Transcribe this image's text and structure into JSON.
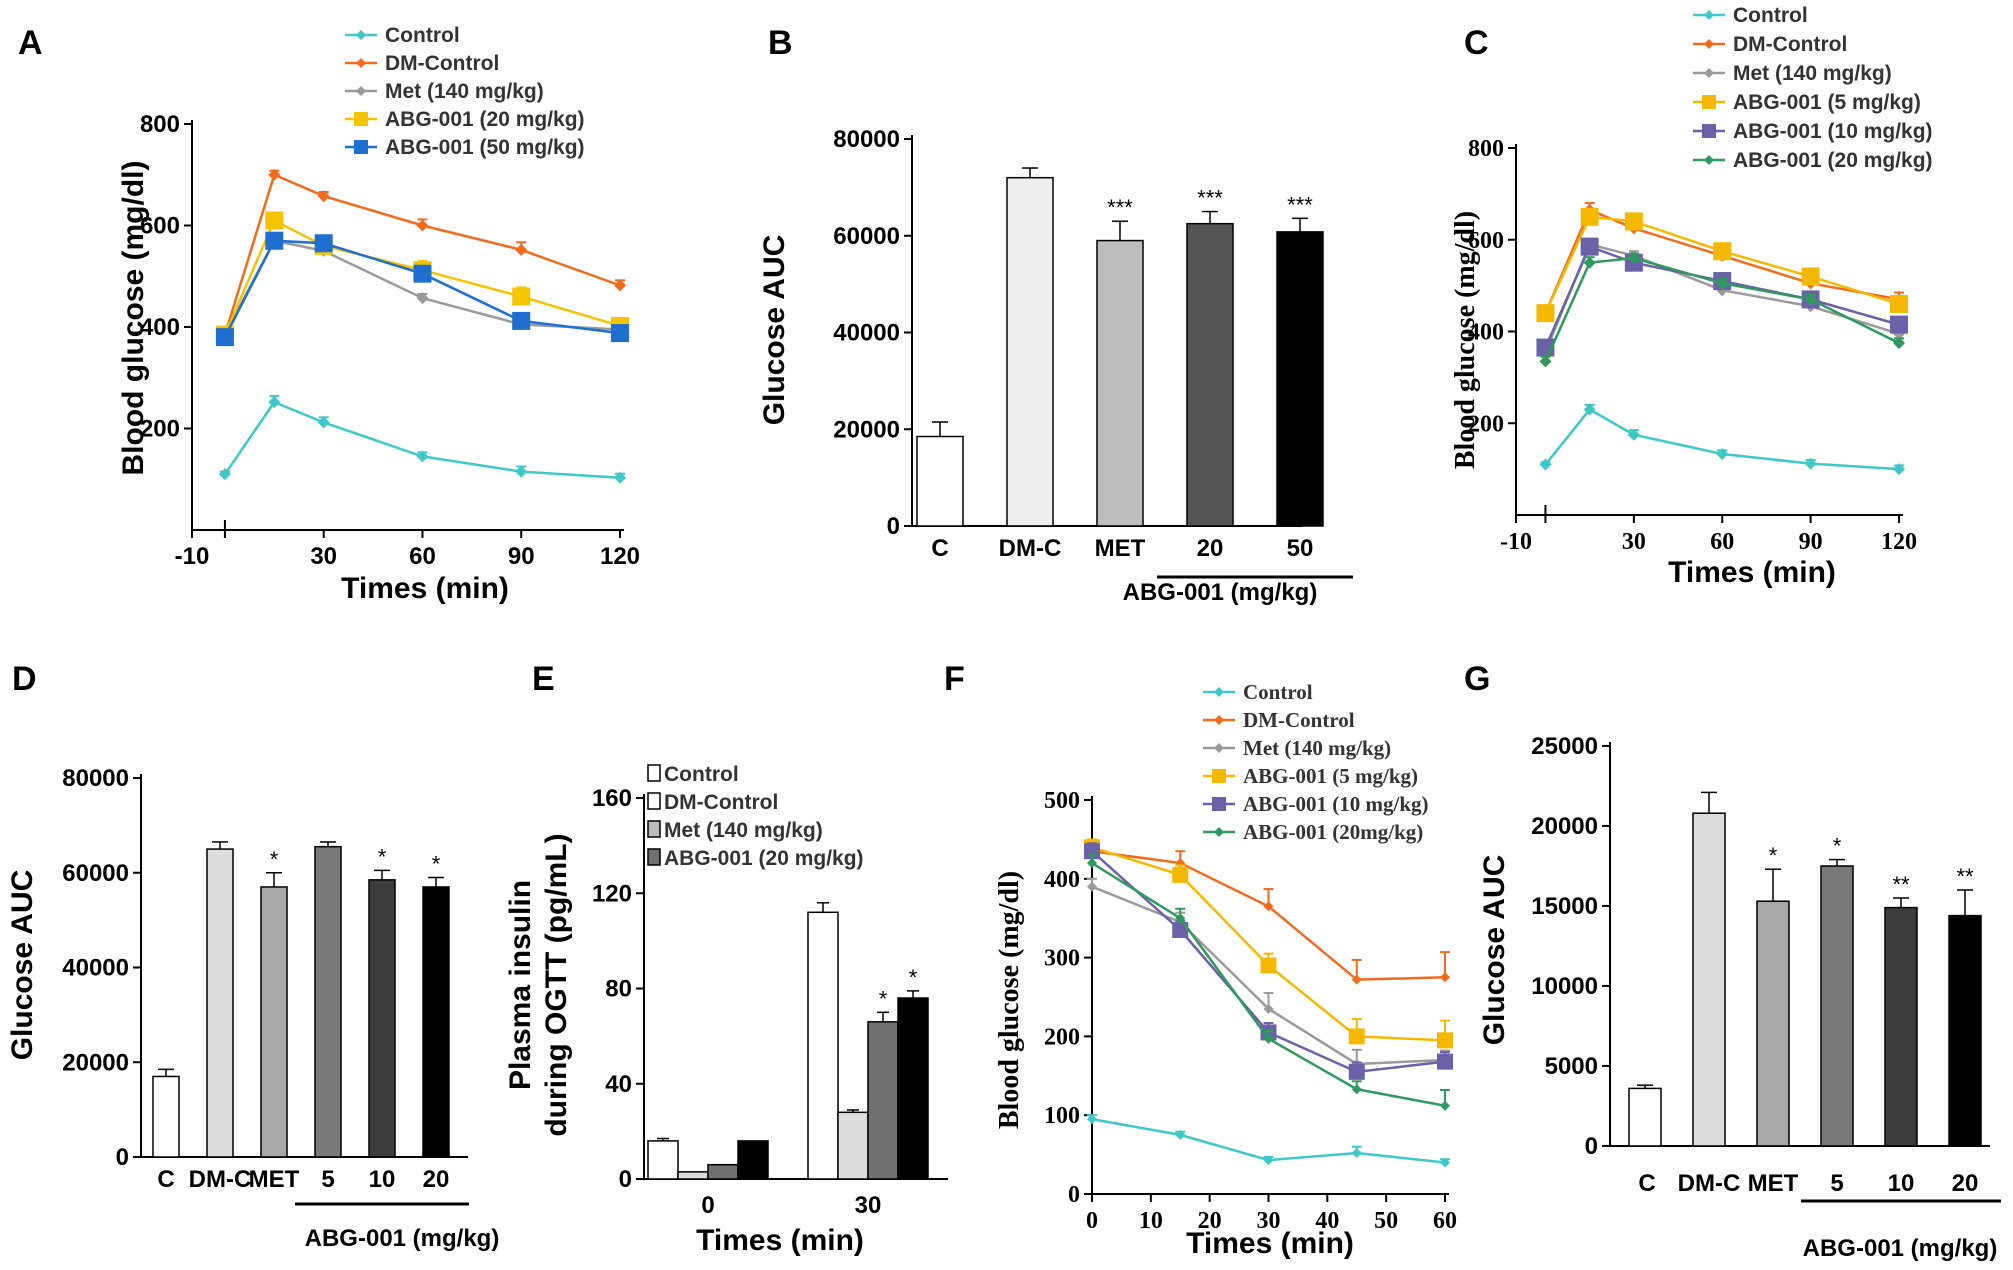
{
  "figure": {
    "panels": [
      "A",
      "B",
      "C",
      "D",
      "E",
      "F",
      "G"
    ]
  },
  "colors": {
    "control": "#3ec8c8",
    "dm_control": "#f26b1d",
    "met": "#9a9a9a",
    "abg_5": "#f5b800",
    "abg_10": "#6a62a6",
    "abg_20_green": "#2e9a5e",
    "abg_20_yellow": "#f5c400",
    "abg_50": "#1f6fd0"
  },
  "chart_data": [
    {
      "id": "A",
      "type": "line",
      "title": "",
      "xlabel": "Times    (min)",
      "ylabel": "Blood glucose (mg/dl)",
      "x_ticks": [
        "-10",
        "30",
        "60",
        "90",
        "120"
      ],
      "x_tick_values": [
        -10,
        30,
        60,
        90,
        120
      ],
      "y_ticks": [
        "200",
        "400",
        "600",
        "800"
      ],
      "y_tick_values": [
        200,
        400,
        600,
        800
      ],
      "xlim": [
        -10,
        120
      ],
      "ylim": [
        0,
        800
      ],
      "x": [
        0,
        15,
        30,
        60,
        90,
        120
      ],
      "series": [
        {
          "name": "Control",
          "color_key": "control",
          "marker": "diamond",
          "values": [
            110,
            252,
            212,
            145,
            115,
            103
          ],
          "err": [
            5,
            12,
            10,
            8,
            10,
            8
          ]
        },
        {
          "name": "DM-Control",
          "color_key": "dm_control",
          "marker": "diamond",
          "values": [
            385,
            700,
            658,
            600,
            552,
            482
          ],
          "err": [
            10,
            8,
            8,
            12,
            15,
            10
          ]
        },
        {
          "name": "Met (140 mg/kg)",
          "color_key": "met",
          "marker": "diamond",
          "values": [
            385,
            570,
            550,
            457,
            405,
            395
          ],
          "err": [
            8,
            12,
            10,
            8,
            8,
            8
          ]
        },
        {
          "name": "ABG-001 (20 mg/kg)",
          "color_key": "abg_20_yellow",
          "marker": "square",
          "values": [
            385,
            610,
            560,
            512,
            460,
            402
          ],
          "err": [
            10,
            12,
            12,
            18,
            18,
            12
          ]
        },
        {
          "name": "ABG-001 (50 mg/kg)",
          "color_key": "abg_50",
          "marker": "square",
          "values": [
            380,
            570,
            565,
            505,
            412,
            388
          ],
          "err": [
            10,
            15,
            12,
            15,
            12,
            10
          ]
        }
      ]
    },
    {
      "id": "B",
      "type": "bar",
      "title": "",
      "xlabel": "ABG-001  (mg/kg)",
      "ylabel": "Glucose AUC",
      "categories": [
        "C",
        "DM-C",
        "MET",
        "20",
        "50"
      ],
      "values": [
        18500,
        72000,
        59000,
        62500,
        60800
      ],
      "err": [
        3000,
        2000,
        4000,
        2500,
        2800
      ],
      "fills": [
        "#ffffff",
        "#efefef",
        "#bdbdbd",
        "#555555",
        "#000000"
      ],
      "sig": [
        "",
        "",
        "***",
        "***",
        "***"
      ],
      "y_ticks": [
        "0",
        "20000",
        "40000",
        "60000",
        "80000"
      ],
      "y_tick_values": [
        0,
        20000,
        40000,
        60000,
        80000
      ],
      "ylim": [
        0,
        80000
      ]
    },
    {
      "id": "C",
      "type": "line",
      "title": "",
      "xlabel": "Times    (min)",
      "ylabel": "Blood glucose  (mg/dl)",
      "x_ticks": [
        "-10",
        "30",
        "60",
        "90",
        "120"
      ],
      "x_tick_values": [
        -10,
        30,
        60,
        90,
        120
      ],
      "y_ticks": [
        "200",
        "400",
        "600",
        "800"
      ],
      "y_tick_values": [
        200,
        400,
        600,
        800
      ],
      "xlim": [
        -10,
        120
      ],
      "ylim": [
        0,
        800
      ],
      "x": [
        0,
        15,
        30,
        60,
        90,
        120
      ],
      "series": [
        {
          "name": "Control",
          "color_key": "control",
          "marker": "diamond",
          "values": [
            110,
            230,
            175,
            133,
            112,
            100
          ],
          "err": [
            5,
            10,
            10,
            8,
            8,
            8
          ]
        },
        {
          "name": "DM-Control",
          "color_key": "dm_control",
          "marker": "diamond",
          "values": [
            440,
            665,
            625,
            565,
            505,
            470
          ],
          "err": [
            10,
            15,
            12,
            12,
            12,
            15
          ]
        },
        {
          "name": "Met (140 mg/kg)",
          "color_key": "met",
          "marker": "diamond",
          "values": [
            355,
            590,
            565,
            490,
            455,
            395
          ],
          "err": [
            10,
            12,
            10,
            10,
            10,
            10
          ]
        },
        {
          "name": "ABG-001 (5 mg/kg)",
          "color_key": "abg_5",
          "marker": "square",
          "values": [
            440,
            650,
            640,
            575,
            520,
            460
          ],
          "err": [
            10,
            15,
            12,
            12,
            12,
            15
          ]
        },
        {
          "name": "ABG-001 (10 mg/kg)",
          "color_key": "abg_10",
          "marker": "square",
          "values": [
            365,
            585,
            550,
            510,
            470,
            415
          ],
          "err": [
            10,
            12,
            12,
            12,
            10,
            12
          ]
        },
        {
          "name": "ABG-001 (20 mg/kg)",
          "color_key": "abg_20_green",
          "marker": "diamond",
          "values": [
            335,
            550,
            560,
            505,
            470,
            375
          ],
          "err": [
            10,
            12,
            10,
            10,
            10,
            10
          ]
        }
      ]
    },
    {
      "id": "D",
      "type": "bar",
      "title": "",
      "xlabel": "ABG-001  (mg/kg)",
      "ylabel": "Glucose  AUC",
      "categories": [
        "C",
        "DM-C",
        "MET",
        "5",
        "10",
        "20"
      ],
      "values": [
        17000,
        65000,
        57000,
        65500,
        58500,
        57000
      ],
      "err": [
        1500,
        1500,
        3000,
        1000,
        2000,
        2000
      ],
      "fills": [
        "#ffffff",
        "#dcdcdc",
        "#a8a8a8",
        "#7a7a7a",
        "#3c3c3c",
        "#000000"
      ],
      "sig": [
        "",
        "",
        "*",
        "",
        "*",
        "*"
      ],
      "y_ticks": [
        "0",
        "20000",
        "40000",
        "60000",
        "80000"
      ],
      "y_tick_values": [
        0,
        20000,
        40000,
        60000,
        80000
      ],
      "ylim": [
        0,
        80000
      ]
    },
    {
      "id": "E",
      "type": "bar",
      "title": "",
      "xlabel": "Times (min)",
      "ylabel": "Plasma insulin",
      "ylabel2": "during OGTT (pg/mL)",
      "categories": [
        "0",
        "30"
      ],
      "series": [
        {
          "name": "Control",
          "values": [
            16,
            112
          ],
          "err": [
            1,
            4
          ]
        },
        {
          "name": "DM-Control",
          "values": [
            3,
            28
          ],
          "err": [
            0,
            1
          ]
        },
        {
          "name": "Met (140 mg/kg)",
          "values": [
            6,
            66
          ],
          "err": [
            0,
            4
          ]
        },
        {
          "name": "ABG-001 (20 mg/kg)",
          "values": [
            16,
            76
          ],
          "err": [
            0,
            3
          ]
        }
      ],
      "fills": [
        "#ffffff",
        "#dcdcdc",
        "#707070",
        "#000000"
      ],
      "legend_fills": [
        "#ffffff",
        "#ffffff",
        "#bdbdbd",
        "#707070"
      ],
      "sig": [
        "",
        "",
        "*",
        "*"
      ],
      "y_ticks": [
        "0",
        "40",
        "80",
        "120",
        "160"
      ],
      "y_tick_values": [
        0,
        40,
        80,
        120,
        160
      ],
      "ylim": [
        0,
        160
      ]
    },
    {
      "id": "F",
      "type": "line",
      "title": "",
      "xlabel": "Times    (min)",
      "ylabel": "Blood glucose  (mg/dl)",
      "x_ticks": [
        "0",
        "10",
        "20",
        "30",
        "40",
        "50",
        "60"
      ],
      "x_tick_values": [
        0,
        10,
        20,
        30,
        40,
        50,
        60
      ],
      "y_ticks": [
        "0",
        "100",
        "200",
        "300",
        "400",
        "500"
      ],
      "y_tick_values": [
        0,
        100,
        200,
        300,
        400,
        500
      ],
      "xlim": [
        0,
        60
      ],
      "ylim": [
        0,
        500
      ],
      "x": [
        0,
        15,
        30,
        45,
        60
      ],
      "series": [
        {
          "name": "Control",
          "color_key": "control",
          "marker": "diamond",
          "values": [
            95,
            75,
            43,
            52,
            40
          ],
          "err": [
            5,
            4,
            4,
            8,
            4
          ]
        },
        {
          "name": "DM-Control",
          "color_key": "dm_control",
          "marker": "diamond",
          "values": [
            435,
            420,
            365,
            272,
            275
          ],
          "err": [
            10,
            15,
            22,
            25,
            32
          ]
        },
        {
          "name": "Met (140 mg/kg)",
          "color_key": "met",
          "marker": "diamond",
          "values": [
            390,
            345,
            235,
            165,
            170
          ],
          "err": [
            10,
            12,
            20,
            18,
            12
          ]
        },
        {
          "name": "ABG-001 (5 mg/kg)",
          "color_key": "abg_5",
          "marker": "square",
          "values": [
            440,
            405,
            290,
            200,
            195
          ],
          "err": [
            10,
            12,
            15,
            22,
            25
          ]
        },
        {
          "name": "ABG-001 (10 mg/kg)",
          "color_key": "abg_10",
          "marker": "square",
          "values": [
            435,
            335,
            205,
            155,
            168
          ],
          "err": [
            10,
            12,
            12,
            12,
            12
          ]
        },
        {
          "name": "ABG-001 (20mg/kg)",
          "color_key": "abg_20_green",
          "marker": "diamond",
          "values": [
            420,
            350,
            197,
            133,
            112
          ],
          "err": [
            10,
            12,
            10,
            10,
            20
          ]
        }
      ]
    },
    {
      "id": "G",
      "type": "bar",
      "title": "",
      "xlabel": "ABG-001 (mg/kg)",
      "ylabel": "Glucose  AUC",
      "categories": [
        "C",
        "DM-C",
        "MET",
        "5",
        "10",
        "20"
      ],
      "values": [
        3600,
        20800,
        15300,
        17500,
        14900,
        14400
      ],
      "err": [
        200,
        1300,
        2000,
        400,
        600,
        1600
      ],
      "fills": [
        "#ffffff",
        "#dcdcdc",
        "#a8a8a8",
        "#7a7a7a",
        "#3c3c3c",
        "#000000"
      ],
      "sig": [
        "",
        "",
        "*",
        "*",
        "**",
        "**"
      ],
      "y_ticks": [
        "0",
        "5000",
        "10000",
        "15000",
        "20000",
        "25000"
      ],
      "y_tick_values": [
        0,
        5000,
        10000,
        15000,
        20000,
        25000
      ],
      "ylim": [
        0,
        25000
      ]
    }
  ]
}
